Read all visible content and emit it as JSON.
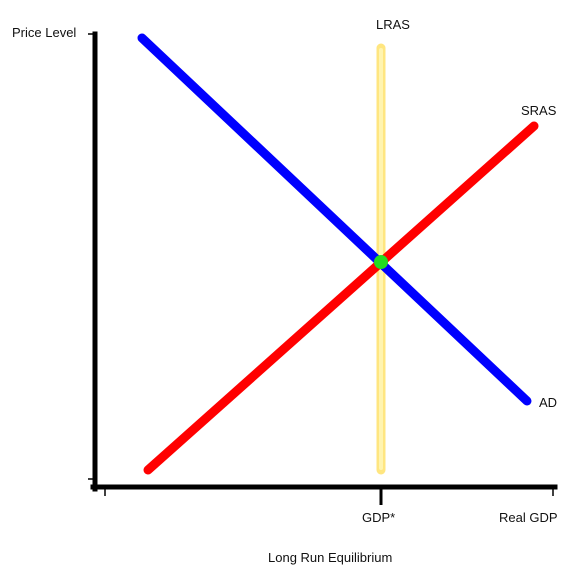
{
  "diagram": {
    "caption": "Long Run Equilibrium",
    "axes": {
      "y_label": "Price Level",
      "x_label": "Real GDP",
      "x_tick_label": "GDP*"
    },
    "curves": {
      "ad": {
        "label": "AD",
        "color": "#0000ff"
      },
      "sras": {
        "label": "SRAS",
        "color": "#ff0000"
      },
      "lras": {
        "label": "LRAS",
        "color": "#ffe680",
        "core_color": "#fff4b0"
      }
    },
    "equilibrium": {
      "color": "#22dd22"
    },
    "axis_color": "#000000"
  }
}
